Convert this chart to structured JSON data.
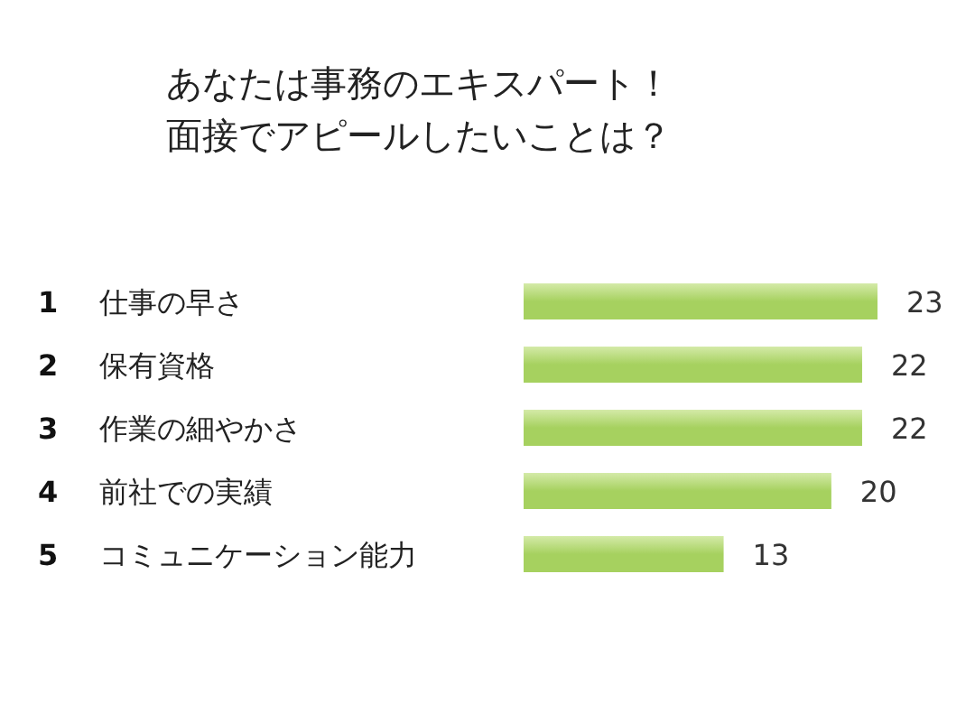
{
  "chart_data": {
    "type": "bar",
    "orientation": "horizontal",
    "title": "あなたは事務のエキスパート！面接でアピールしたいことは？",
    "categories": [
      "仕事の早さ",
      "保有資格",
      "作業の細やかさ",
      "前社での実績",
      "コミュニケーション能力"
    ],
    "values": [
      23,
      22,
      22,
      20,
      13
    ],
    "color": "#a6d15f",
    "data_labels": true,
    "annotations": [
      "1",
      "2",
      "3",
      "4",
      "5"
    ]
  }
}
